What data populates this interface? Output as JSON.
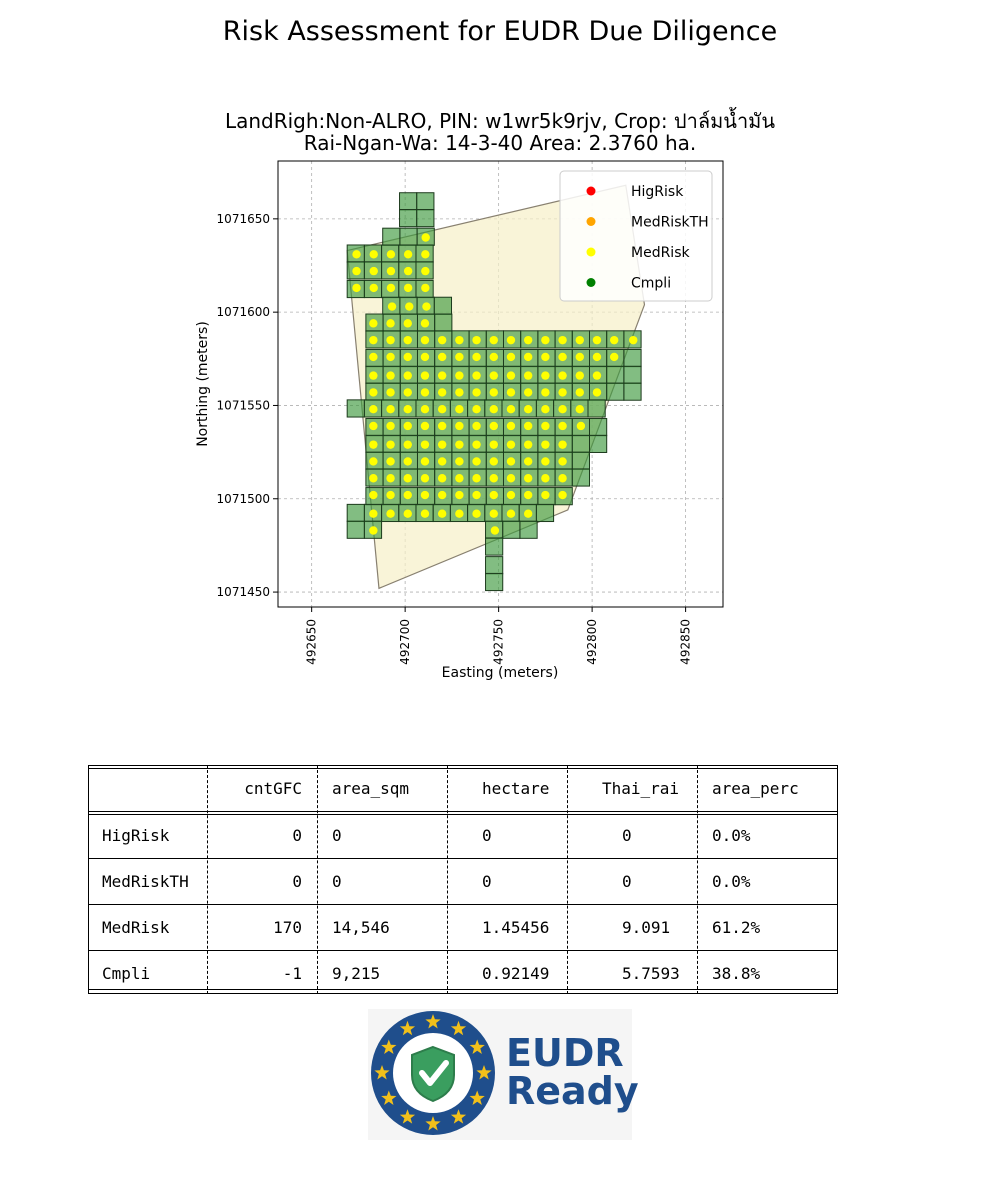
{
  "suptitle": "Risk Assessment for EUDR Due Diligence",
  "subtitle_line1": "LandRigh:Non-ALRO, PIN: w1wr5k9rjv,  Crop: ปาล์มน้ำมัน",
  "subtitle_line2": "Rai-Ngan-Wa: 14-3-40    Area: 2.3760 ha.",
  "chart_data": {
    "type": "scatter",
    "xlabel": "Easting (meters)",
    "ylabel": "Northing (meters)",
    "xlim": [
      492632,
      492870
    ],
    "ylim": [
      1071442,
      1071681
    ],
    "xticks": [
      492650,
      492700,
      492750,
      492800,
      492850
    ],
    "yticks": [
      1071450,
      1071500,
      1071550,
      1071600,
      1071650
    ],
    "grid": true,
    "legend_position": "top-right",
    "legend": [
      {
        "name": "HigRisk",
        "color": "#ff0000"
      },
      {
        "name": "MedRiskTH",
        "color": "#ffa500"
      },
      {
        "name": "MedRisk",
        "color": "#ffff00"
      },
      {
        "name": "Cmpli",
        "color": "#008000"
      }
    ],
    "plot_boundary": [
      [
        492669,
        1071633
      ],
      [
        492818,
        1071668
      ],
      [
        492828,
        1071604
      ],
      [
        492787,
        1071494
      ],
      [
        492686,
        1071452
      ]
    ],
    "grid_cell_size": 9.2,
    "grid_cells": [
      {
        "row_north": 1071664,
        "x_start": 492697,
        "count": 2
      },
      {
        "row_north": 1071655,
        "x_start": 492697,
        "count": 2
      },
      {
        "row_north": 1071645,
        "x_start": 492688,
        "count": 3
      },
      {
        "row_north": 1071636,
        "x_start": 492669,
        "count": 5
      },
      {
        "row_north": 1071627,
        "x_start": 492669,
        "count": 5
      },
      {
        "row_north": 1071617,
        "x_start": 492669,
        "count": 5
      },
      {
        "row_north": 1071608,
        "x_start": 492688,
        "count": 4
      },
      {
        "row_north": 1071599,
        "x_start": 492679,
        "count": 5
      },
      {
        "row_north": 1071590,
        "x_start": 492679,
        "count": 16
      },
      {
        "row_north": 1071580,
        "x_start": 492679,
        "count": 16
      },
      {
        "row_north": 1071571,
        "x_start": 492679,
        "count": 16
      },
      {
        "row_north": 1071562,
        "x_start": 492679,
        "count": 16
      },
      {
        "row_north": 1071553,
        "x_start": 492669,
        "count": 15
      },
      {
        "row_north": 1071543,
        "x_start": 492679,
        "count": 14
      },
      {
        "row_north": 1071534,
        "x_start": 492679,
        "count": 14
      },
      {
        "row_north": 1071525,
        "x_start": 492679,
        "count": 13
      },
      {
        "row_north": 1071516,
        "x_start": 492679,
        "count": 13
      },
      {
        "row_north": 1071506,
        "x_start": 492679,
        "count": 12
      },
      {
        "row_north": 1071497,
        "x_start": 492669,
        "count": 12
      },
      {
        "row_north": 1071488,
        "x_start": 492669,
        "count": 2
      },
      {
        "row_north": 1071488,
        "x_start": 492743,
        "count": 3
      },
      {
        "row_north": 1071479,
        "x_start": 492743,
        "count": 1
      },
      {
        "row_north": 1071469,
        "x_start": 492743,
        "count": 1
      },
      {
        "row_north": 1071460,
        "x_start": 492743,
        "count": 1
      }
    ],
    "points_color": "#ffff00",
    "point_rows": [
      {
        "y": 1071640,
        "x_start": 492711,
        "count": 1
      },
      {
        "y": 1071631,
        "x_start": 492674,
        "count": 5
      },
      {
        "y": 1071622,
        "x_start": 492674,
        "count": 5
      },
      {
        "y": 1071613,
        "x_start": 492674,
        "count": 5
      },
      {
        "y": 1071603,
        "x_start": 492693,
        "count": 3
      },
      {
        "y": 1071594,
        "x_start": 492683,
        "count": 4
      },
      {
        "y": 1071585,
        "x_start": 492683,
        "count": 15
      },
      {
        "y": 1071585,
        "x_start": 492822,
        "count": 1
      },
      {
        "y": 1071576,
        "x_start": 492683,
        "count": 15
      },
      {
        "y": 1071566,
        "x_start": 492683,
        "count": 14
      },
      {
        "y": 1071557,
        "x_start": 492683,
        "count": 14
      },
      {
        "y": 1071548,
        "x_start": 492683,
        "count": 13
      },
      {
        "y": 1071539,
        "x_start": 492683,
        "count": 12
      },
      {
        "y": 1071539,
        "x_start": 492794,
        "count": 1
      },
      {
        "y": 1071529,
        "x_start": 492683,
        "count": 12
      },
      {
        "y": 1071520,
        "x_start": 492683,
        "count": 12
      },
      {
        "y": 1071511,
        "x_start": 492683,
        "count": 12
      },
      {
        "y": 1071502,
        "x_start": 492683,
        "count": 12
      },
      {
        "y": 1071492,
        "x_start": 492683,
        "count": 10
      },
      {
        "y": 1071483,
        "x_start": 492683,
        "count": 1
      },
      {
        "y": 1071483,
        "x_start": 492748,
        "count": 1
      }
    ],
    "point_spacing": 9.2
  },
  "table": {
    "headers": [
      "",
      "cntGFC",
      "area_sqm",
      "hectare",
      "Thai_rai",
      "area_perc"
    ],
    "rows": [
      {
        "name": "HigRisk",
        "cntGFC": "0",
        "area_sqm": "0",
        "hectare": "0",
        "thai_rai": "0",
        "area_perc": "0.0%"
      },
      {
        "name": "MedRiskTH",
        "cntGFC": "0",
        "area_sqm": "0",
        "hectare": "0",
        "thai_rai": "0",
        "area_perc": "0.0%"
      },
      {
        "name": "MedRisk",
        "cntGFC": "170",
        "area_sqm": "14,546",
        "hectare": "1.45456",
        "thai_rai": "9.091",
        "area_perc": "61.2%"
      },
      {
        "name": "Cmpli",
        "cntGFC": "-1",
        "area_sqm": "9,215",
        "hectare": "0.92149",
        "thai_rai": "5.7593",
        "area_perc": "38.8%"
      }
    ]
  },
  "logo": {
    "line1": "EUDR",
    "line2": "Ready",
    "colors": {
      "ring": "#1f4e8c",
      "star": "#f2c01a",
      "shield": "#3a9e5f",
      "text": "#1f4e8c"
    }
  }
}
